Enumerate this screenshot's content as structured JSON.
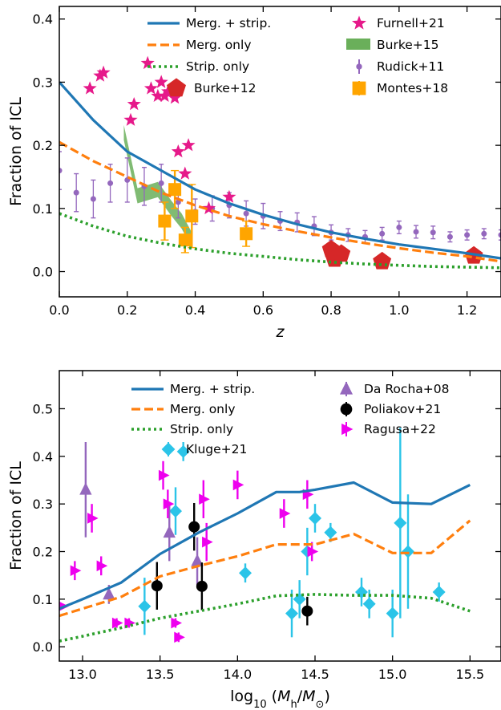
{
  "chart_data": [
    {
      "type": "line",
      "title": "",
      "xlabel": "z",
      "ylabel": "Fraction of ICL",
      "xlim": [
        0.0,
        1.3
      ],
      "ylim": [
        -0.04,
        0.42
      ],
      "xticks": [
        "0.0",
        "0.2",
        "0.4",
        "0.6",
        "0.8",
        "1.0",
        "1.2"
      ],
      "yticks": [
        "0.0",
        "0.1",
        "0.2",
        "0.3",
        "0.4"
      ],
      "grid": false,
      "legend_position": "top",
      "series": [
        {
          "name": "Merg. + strip.",
          "kind": "line",
          "style": "solid",
          "color": "#1f77b4",
          "x": [
            0.0,
            0.1,
            0.2,
            0.3,
            0.4,
            0.5,
            0.6,
            0.7,
            0.8,
            0.9,
            1.0,
            1.1,
            1.2,
            1.3
          ],
          "y": [
            0.3,
            0.24,
            0.19,
            0.16,
            0.13,
            0.108,
            0.09,
            0.075,
            0.062,
            0.052,
            0.043,
            0.036,
            0.029,
            0.021
          ]
        },
        {
          "name": "Merg. only",
          "kind": "line",
          "style": "dashed",
          "color": "#ff7f0e",
          "x": [
            0.0,
            0.1,
            0.2,
            0.3,
            0.4,
            0.5,
            0.6,
            0.7,
            0.8,
            0.9,
            1.0,
            1.1,
            1.2,
            1.3
          ],
          "y": [
            0.205,
            0.175,
            0.15,
            0.125,
            0.105,
            0.088,
            0.075,
            0.064,
            0.054,
            0.045,
            0.037,
            0.03,
            0.024,
            0.016
          ]
        },
        {
          "name": "Strip. only",
          "kind": "line",
          "style": "dotted",
          "color": "#2ca02c",
          "x": [
            0.0,
            0.1,
            0.2,
            0.3,
            0.4,
            0.5,
            0.6,
            0.7,
            0.8,
            0.9,
            1.0,
            1.1,
            1.2,
            1.3
          ],
          "y": [
            0.092,
            0.072,
            0.056,
            0.045,
            0.036,
            0.029,
            0.024,
            0.019,
            0.015,
            0.012,
            0.01,
            0.008,
            0.007,
            0.006
          ]
        },
        {
          "name": "Burke+12",
          "kind": "scatter",
          "marker": "pentagon",
          "color": "#d62728",
          "x": [
            0.8,
            0.81,
            0.83,
            0.95,
            1.22
          ],
          "y": [
            0.035,
            0.02,
            0.028,
            0.016,
            0.025
          ]
        },
        {
          "name": "Furnell+21",
          "kind": "scatter",
          "marker": "star",
          "color": "#e6198a",
          "x": [
            0.09,
            0.12,
            0.13,
            0.21,
            0.22,
            0.26,
            0.27,
            0.29,
            0.3,
            0.31,
            0.32,
            0.34,
            0.35,
            0.37,
            0.38,
            0.44,
            0.5
          ],
          "y": [
            0.29,
            0.31,
            0.315,
            0.24,
            0.265,
            0.33,
            0.29,
            0.278,
            0.3,
            0.278,
            0.285,
            0.275,
            0.19,
            0.155,
            0.2,
            0.1,
            0.118
          ]
        },
        {
          "name": "Burke+15",
          "kind": "band",
          "color": "#6aaf5a",
          "x": [
            0.19,
            0.23,
            0.29,
            0.33,
            0.36,
            0.39
          ],
          "y": [
            0.22,
            0.12,
            0.13,
            0.1,
            0.08,
            0.05
          ]
        },
        {
          "name": "Rudick+11",
          "kind": "errorbar",
          "marker": "circle",
          "color": "#9467bd",
          "x": [
            0.0,
            0.05,
            0.1,
            0.15,
            0.2,
            0.25,
            0.3,
            0.35,
            0.4,
            0.45,
            0.5,
            0.55,
            0.6,
            0.65,
            0.7,
            0.75,
            0.8,
            0.85,
            0.9,
            0.95,
            1.0,
            1.05,
            1.1,
            1.15,
            1.2,
            1.25,
            1.3
          ],
          "y": [
            0.16,
            0.125,
            0.115,
            0.14,
            0.145,
            0.135,
            0.14,
            0.11,
            0.095,
            0.1,
            0.105,
            0.092,
            0.088,
            0.08,
            0.078,
            0.072,
            0.062,
            0.058,
            0.055,
            0.06,
            0.07,
            0.063,
            0.062,
            0.055,
            0.058,
            0.06,
            0.058
          ],
          "yerr": [
            0.03,
            0.03,
            0.03,
            0.03,
            0.035,
            0.03,
            0.03,
            0.025,
            0.02,
            0.02,
            0.02,
            0.02,
            0.02,
            0.015,
            0.015,
            0.015,
            0.012,
            0.01,
            0.01,
            0.01,
            0.01,
            0.01,
            0.01,
            0.008,
            0.008,
            0.008,
            0.008
          ]
        },
        {
          "name": "Montes+18",
          "kind": "errorbar",
          "marker": "square",
          "color": "#ffa500",
          "x": [
            0.31,
            0.34,
            0.37,
            0.39,
            0.55
          ],
          "y": [
            0.08,
            0.13,
            0.05,
            0.088,
            0.06
          ],
          "yerr": [
            0.03,
            0.03,
            0.02,
            0.05,
            0.02
          ]
        }
      ]
    },
    {
      "type": "line",
      "title": "",
      "xlabel": "log₁₀ (M_h/M_⊙)",
      "ylabel": "Fraction of ICL",
      "xlim": [
        12.85,
        15.7
      ],
      "ylim": [
        -0.03,
        0.58
      ],
      "xticks": [
        "13.0",
        "13.5",
        "14.0",
        "14.5",
        "15.0",
        "15.5"
      ],
      "yticks": [
        "0.0",
        "0.1",
        "0.2",
        "0.3",
        "0.4",
        "0.5"
      ],
      "grid": false,
      "legend_position": "top",
      "series": [
        {
          "name": "Merg. + strip.",
          "kind": "line",
          "style": "solid",
          "color": "#1f77b4",
          "x": [
            12.85,
            13.0,
            13.25,
            13.5,
            13.75,
            14.0,
            14.25,
            14.4,
            14.5,
            14.75,
            15.0,
            15.25,
            15.5
          ],
          "y": [
            0.08,
            0.1,
            0.135,
            0.195,
            0.24,
            0.28,
            0.325,
            0.325,
            0.33,
            0.345,
            0.303,
            0.3,
            0.34
          ]
        },
        {
          "name": "Merg. only",
          "kind": "line",
          "style": "dashed",
          "color": "#ff7f0e",
          "x": [
            12.85,
            13.0,
            13.25,
            13.5,
            13.75,
            14.0,
            14.25,
            14.5,
            14.75,
            15.0,
            15.25,
            15.5
          ],
          "y": [
            0.065,
            0.08,
            0.105,
            0.148,
            0.17,
            0.19,
            0.215,
            0.215,
            0.237,
            0.197,
            0.197,
            0.265
          ]
        },
        {
          "name": "Strip. only",
          "kind": "line",
          "style": "dotted",
          "color": "#2ca02c",
          "x": [
            12.85,
            13.0,
            13.25,
            13.5,
            13.75,
            14.0,
            14.25,
            14.5,
            14.75,
            15.0,
            15.25,
            15.5
          ],
          "y": [
            0.012,
            0.022,
            0.04,
            0.06,
            0.075,
            0.09,
            0.107,
            0.11,
            0.108,
            0.108,
            0.102,
            0.075
          ]
        },
        {
          "name": "Kluge+21",
          "kind": "errorbar",
          "marker": "diamond",
          "color": "#2bc4e8",
          "x": [
            13.4,
            13.6,
            13.65,
            14.05,
            14.35,
            14.4,
            14.45,
            14.5,
            14.6,
            14.8,
            14.85,
            15.0,
            15.05,
            15.1,
            15.3
          ],
          "y": [
            0.085,
            0.285,
            0.41,
            0.155,
            0.07,
            0.1,
            0.2,
            0.27,
            0.24,
            0.115,
            0.09,
            0.07,
            0.26,
            0.2,
            0.115
          ],
          "yerr": [
            0.06,
            0.05,
            0.02,
            0.02,
            0.05,
            0.04,
            0.05,
            0.03,
            0.02,
            0.03,
            0.03,
            0.05,
            0.2,
            0.12,
            0.02
          ]
        },
        {
          "name": "Da Rocha+08",
          "kind": "errorbar",
          "marker": "triangle",
          "color": "#9467bd",
          "x": [
            13.02,
            13.17,
            13.56,
            13.74
          ],
          "y": [
            0.33,
            0.11,
            0.24,
            0.18
          ],
          "yerr": [
            0.1,
            0.02,
            0.06,
            0.05
          ]
        },
        {
          "name": "Poliakov+21",
          "kind": "errorbar",
          "marker": "circle",
          "color": "#000000",
          "x": [
            13.48,
            13.72,
            13.77,
            14.45
          ],
          "y": [
            0.128,
            0.252,
            0.127,
            0.075
          ],
          "yerr": [
            0.05,
            0.05,
            0.05,
            0.03
          ]
        },
        {
          "name": "Ragusa+22",
          "kind": "errorbar",
          "marker": "triangle-right",
          "color": "#ee00ee",
          "x": [
            12.87,
            12.95,
            13.06,
            13.12,
            13.22,
            13.3,
            13.52,
            13.55,
            13.6,
            13.62,
            13.78,
            13.8,
            14.0,
            14.3,
            14.45,
            14.48
          ],
          "y": [
            0.085,
            0.16,
            0.27,
            0.17,
            0.05,
            0.05,
            0.36,
            0.3,
            0.05,
            0.02,
            0.31,
            0.22,
            0.34,
            0.28,
            0.32,
            0.2
          ],
          "yerr": [
            0.0,
            0.02,
            0.03,
            0.02,
            0.01,
            0.01,
            0.03,
            0.03,
            0.01,
            0.01,
            0.04,
            0.04,
            0.03,
            0.03,
            0.03,
            0.02
          ]
        }
      ]
    }
  ]
}
